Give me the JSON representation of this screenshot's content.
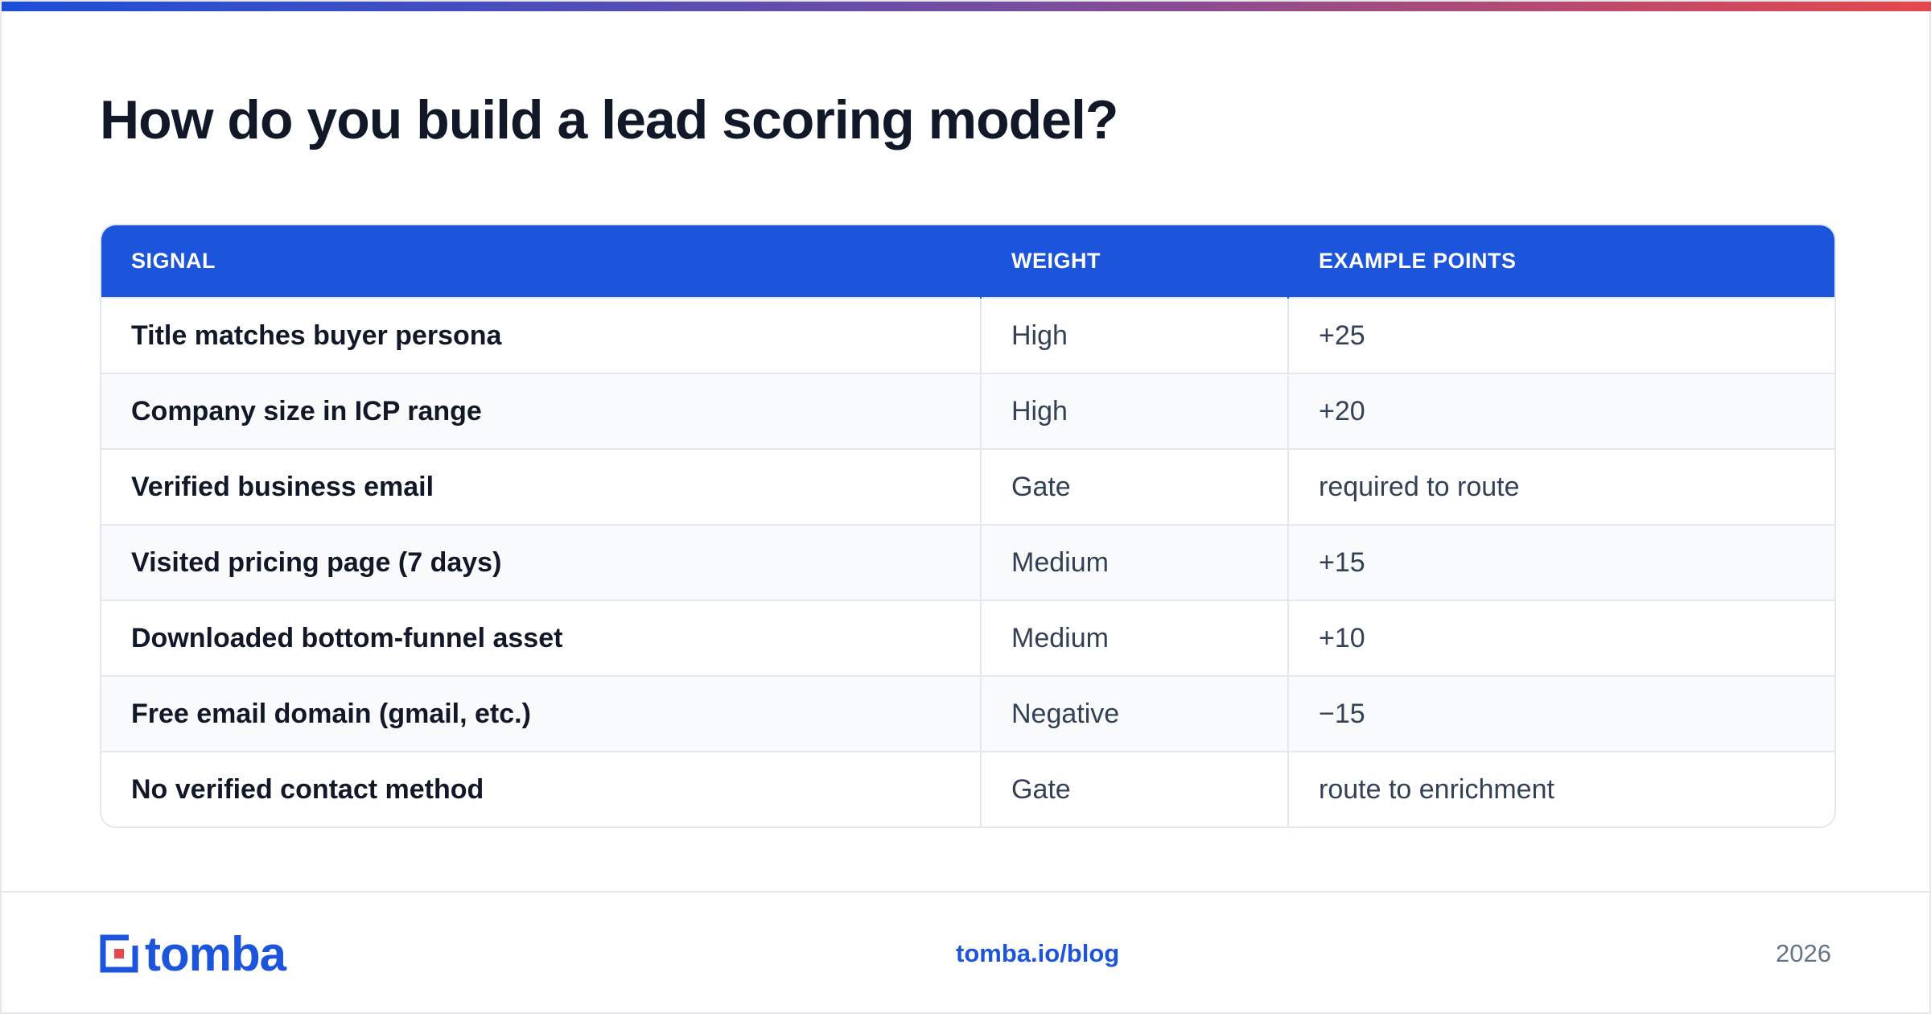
{
  "header": {
    "title": "How do you build a lead scoring model?"
  },
  "table": {
    "columns": [
      "SIGNAL",
      "WEIGHT",
      "EXAMPLE POINTS"
    ],
    "rows": [
      [
        "Title matches buyer persona",
        "High",
        "+25"
      ],
      [
        "Company size in ICP range",
        "High",
        "+20"
      ],
      [
        "Verified business email",
        "Gate",
        "required to route"
      ],
      [
        "Visited pricing page (7 days)",
        "Medium",
        "+15"
      ],
      [
        "Downloaded bottom-funnel asset",
        "Medium",
        "+10"
      ],
      [
        "Free email domain (gmail, etc.)",
        "Negative",
        "−15"
      ],
      [
        "No verified contact method",
        "Gate",
        "route to enrichment"
      ]
    ]
  },
  "footer": {
    "logo": "tomba",
    "link": "tomba.io/blog",
    "year": "2026"
  }
}
